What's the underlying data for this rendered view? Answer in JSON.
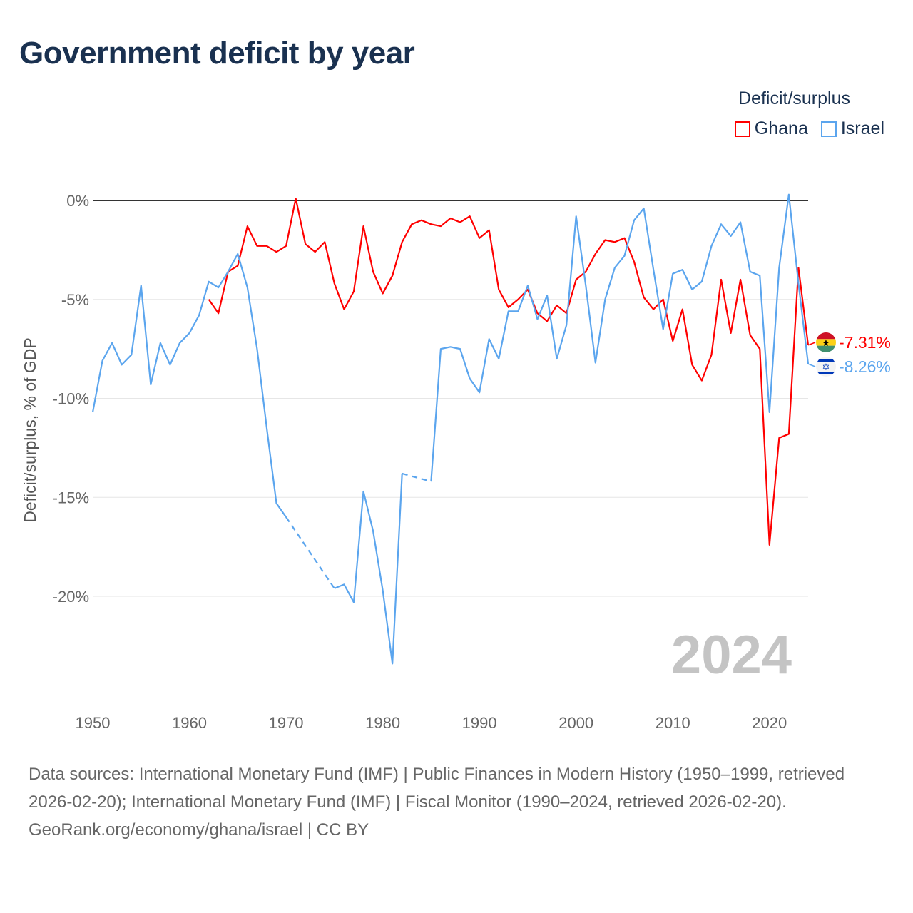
{
  "chart_data": {
    "type": "line",
    "title": "Government deficit by year",
    "ylabel": "Deficit/surplus, % of GDP",
    "xlabel": "",
    "legend_title": "Deficit/surplus",
    "legend_position": "top-right",
    "ylim": [
      -25,
      0.5
    ],
    "xlim": [
      1950,
      2024
    ],
    "yticks": [
      0,
      -5,
      -10,
      -15,
      -20
    ],
    "ytick_labels": [
      "0%",
      "-5%",
      "-10%",
      "-15%",
      "-20%"
    ],
    "xticks": [
      1950,
      1960,
      1970,
      1980,
      1990,
      2000,
      2010,
      2020
    ],
    "xtick_labels": [
      "1950",
      "1960",
      "1970",
      "1980",
      "1990",
      "2000",
      "2010",
      "2020"
    ],
    "year_label": "2024",
    "x_start": 1950,
    "series": [
      {
        "name": "Ghana",
        "color": "#ff0000",
        "end_label": "-7.31%",
        "values": [
          null,
          null,
          null,
          null,
          null,
          null,
          null,
          null,
          null,
          null,
          null,
          null,
          -5.0,
          -5.7,
          -3.6,
          -3.3,
          -1.3,
          -2.3,
          -2.3,
          -2.6,
          -2.3,
          0.1,
          -2.2,
          -2.6,
          -2.1,
          -4.2,
          -5.5,
          -4.6,
          -1.3,
          -3.6,
          -4.7,
          -3.8,
          -2.1,
          -1.2,
          -1.0,
          -1.2,
          -1.3,
          -0.9,
          -1.1,
          -0.8,
          -1.9,
          -1.5,
          -4.5,
          -5.4,
          -5.0,
          -4.5,
          -5.7,
          -6.1,
          -5.3,
          -5.7,
          -4.0,
          -3.6,
          -2.7,
          -2.0,
          -2.1,
          -1.9,
          -3.1,
          -4.9,
          -5.5,
          -5.0,
          -7.1,
          -5.5,
          -8.3,
          -9.1,
          -7.8,
          -4.0,
          -6.7,
          -4.0,
          -6.8,
          -7.5,
          -17.4,
          -12.0,
          -11.8,
          -3.4,
          -7.31
        ]
      },
      {
        "name": "Israel",
        "color": "#5ba5ee",
        "end_label": "-8.26%",
        "values": [
          -10.7,
          -8.1,
          -7.2,
          -8.3,
          -7.8,
          -4.3,
          -9.3,
          -7.2,
          -8.3,
          -7.2,
          -6.7,
          -5.8,
          -4.1,
          -4.4,
          -3.6,
          -2.7,
          -4.4,
          -7.5,
          -11.5,
          -15.3,
          -16.0,
          null,
          null,
          null,
          null,
          -19.6,
          -19.4,
          -20.3,
          -14.7,
          -16.7,
          -19.7,
          -23.4,
          -13.8,
          null,
          null,
          -14.2,
          -7.5,
          -7.4,
          -7.5,
          -9.0,
          -9.7,
          -7.0,
          -8.0,
          -5.6,
          -5.6,
          -4.3,
          -6.0,
          -4.8,
          -8.0,
          -6.3,
          -0.8,
          -4.3,
          -8.2,
          -5.0,
          -3.4,
          -2.8,
          -1.0,
          -0.4,
          -3.5,
          -6.5,
          -3.7,
          -3.5,
          -4.5,
          -4.1,
          -2.3,
          -1.2,
          -1.8,
          -1.1,
          -3.6,
          -3.8,
          -10.7,
          -3.4,
          0.3,
          -4.2,
          -8.26
        ]
      }
    ]
  },
  "footer": {
    "sources": "Data sources: International Monetary Fund (IMF) | Public Finances in Modern History (1950–1999, retrieved 2026-02-20); International Monetary Fund (IMF) | Fiscal Monitor (1990–2024, retrieved 2026-02-20).",
    "credit": "GeoRank.org/economy/ghana/israel | CC BY"
  }
}
